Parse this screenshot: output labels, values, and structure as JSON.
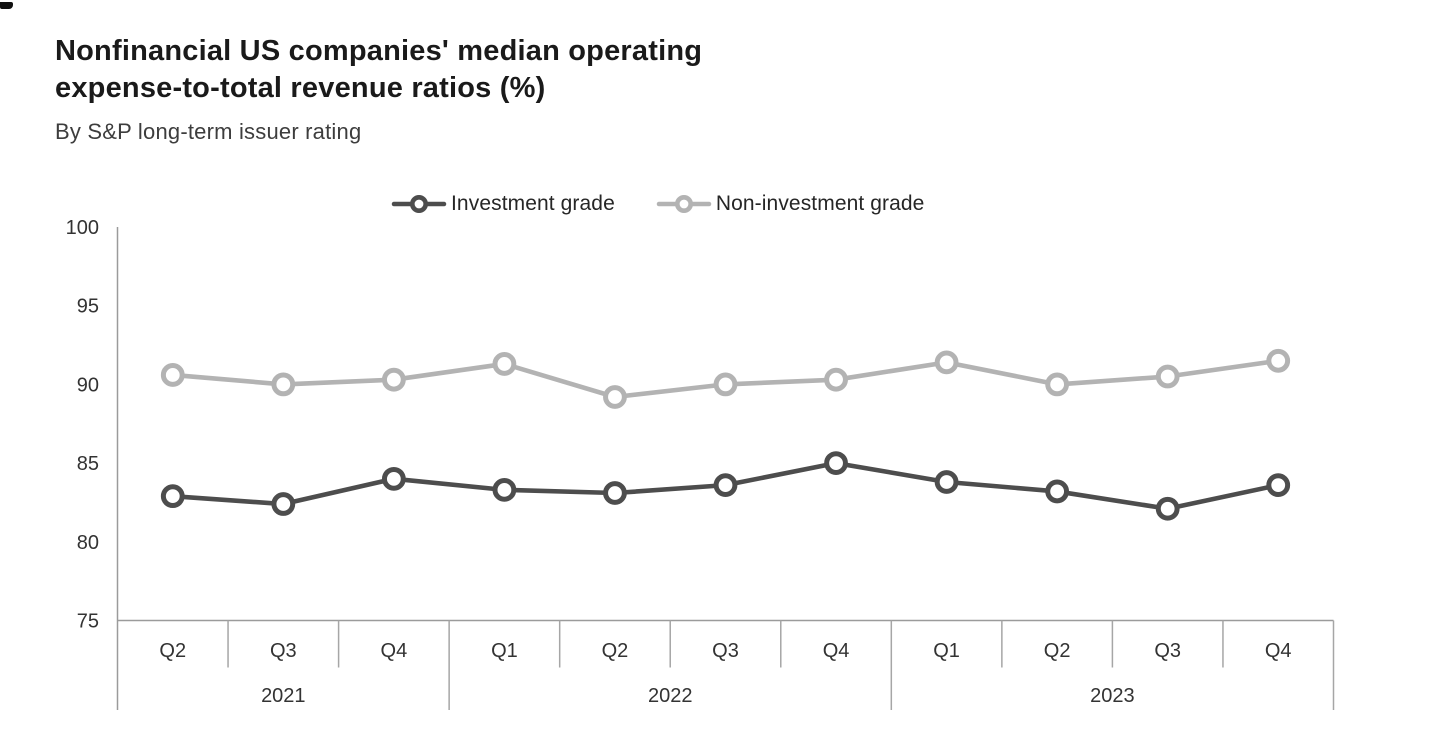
{
  "title": {
    "line1": "Nonfinancial US companies' median operating",
    "line2": "expense-to-total revenue ratios (%)"
  },
  "subtitle": "By S&P long-term issuer rating",
  "legend": {
    "items": [
      {
        "label": "Investment grade",
        "color": "#4d4d4d"
      },
      {
        "label": "Non-investment grade",
        "color": "#b3b3b3"
      }
    ]
  },
  "chart_data": {
    "type": "line",
    "title": "Nonfinancial US companies' median operating expense-to-total revenue ratios (%)",
    "subtitle": "By S&P long-term issuer rating",
    "categories": [
      "Q2",
      "Q3",
      "Q4",
      "Q1",
      "Q2",
      "Q3",
      "Q4",
      "Q1",
      "Q2",
      "Q3",
      "Q4"
    ],
    "year_groups": [
      {
        "year": "2021",
        "count": 3
      },
      {
        "year": "2022",
        "count": 4
      },
      {
        "year": "2023",
        "count": 4
      }
    ],
    "series": [
      {
        "name": "Investment grade",
        "color": "#4d4d4d",
        "values": [
          82.9,
          82.4,
          84.0,
          83.3,
          83.1,
          83.6,
          85.0,
          83.8,
          83.2,
          82.1,
          83.6
        ]
      },
      {
        "name": "Non-investment grade",
        "color": "#b3b3b3",
        "values": [
          90.6,
          90.0,
          90.3,
          91.3,
          89.2,
          90.0,
          90.3,
          91.4,
          90.0,
          90.5,
          91.5
        ]
      }
    ],
    "yticks": [
      75,
      80,
      85,
      90,
      95,
      100
    ],
    "ylim": [
      75,
      100
    ],
    "xlabel": "",
    "ylabel": "",
    "grid": false,
    "legend_position": "top-center",
    "marker": "open-circle",
    "axis_color": "#9b9b9b",
    "separator_color": "#a6a6a6",
    "text_color": "#333333"
  }
}
